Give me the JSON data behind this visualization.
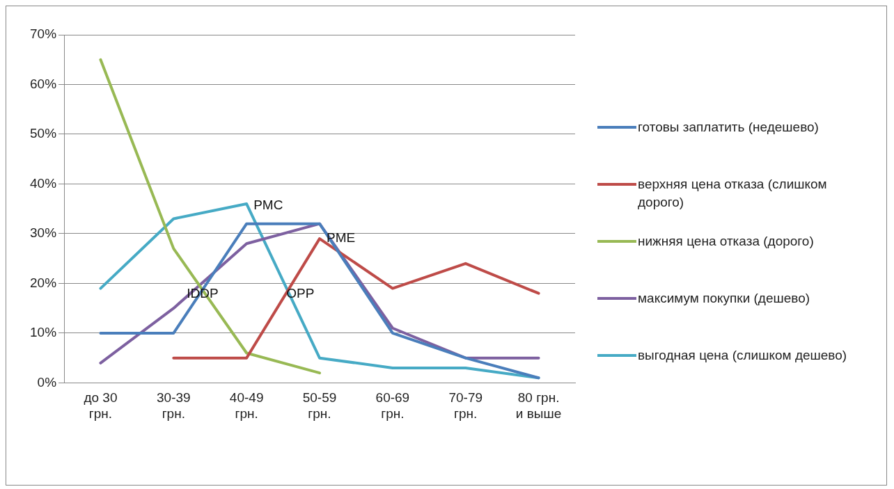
{
  "chart_data": {
    "type": "line",
    "categories": [
      "до 30 грн.",
      "30-39 грн.",
      "40-49 грн.",
      "50-59 грн.",
      "60-69 грн.",
      "70-79 грн.",
      "80 грн. и выше"
    ],
    "series": [
      {
        "name": "готовы заплатить (недешево)",
        "color": "#4a7ebb",
        "values": [
          10,
          10,
          32,
          32,
          10,
          5,
          1
        ]
      },
      {
        "name": "верхняя цена отказа (слишком дорого)",
        "color": "#be4b48",
        "values": [
          null,
          5,
          5,
          29,
          19,
          24,
          18
        ]
      },
      {
        "name": "нижняя цена отказа (дорого)",
        "color": "#98b954",
        "values": [
          65,
          27,
          6,
          2,
          null,
          null,
          null
        ]
      },
      {
        "name": "максимум покупки (дешево)",
        "color": "#7d60a0",
        "values": [
          4,
          15,
          28,
          32,
          11,
          5,
          5
        ]
      },
      {
        "name": "выгодная цена (слишком дешево)",
        "color": "#46aac5",
        "values": [
          19,
          33,
          36,
          5,
          3,
          3,
          1
        ]
      }
    ],
    "ylim": [
      0,
      70
    ],
    "yticks": [
      {
        "value": 0,
        "label": "0%"
      },
      {
        "value": 10,
        "label": "10%"
      },
      {
        "value": 20,
        "label": "20%"
      },
      {
        "value": 30,
        "label": "30%"
      },
      {
        "value": 40,
        "label": "40%"
      },
      {
        "value": 50,
        "label": "50%"
      },
      {
        "value": 60,
        "label": "60%"
      },
      {
        "value": 70,
        "label": "70%"
      }
    ],
    "grid": "y",
    "legend": "right",
    "marker": "none",
    "line_style": "solid",
    "annotations": [
      {
        "text": "PMC",
        "x": "40-49 грн.",
        "y": 35
      },
      {
        "text": "PME",
        "x": "50-59 грн.",
        "y": 28.5
      },
      "IDDP",
      "OPP"
    ]
  }
}
